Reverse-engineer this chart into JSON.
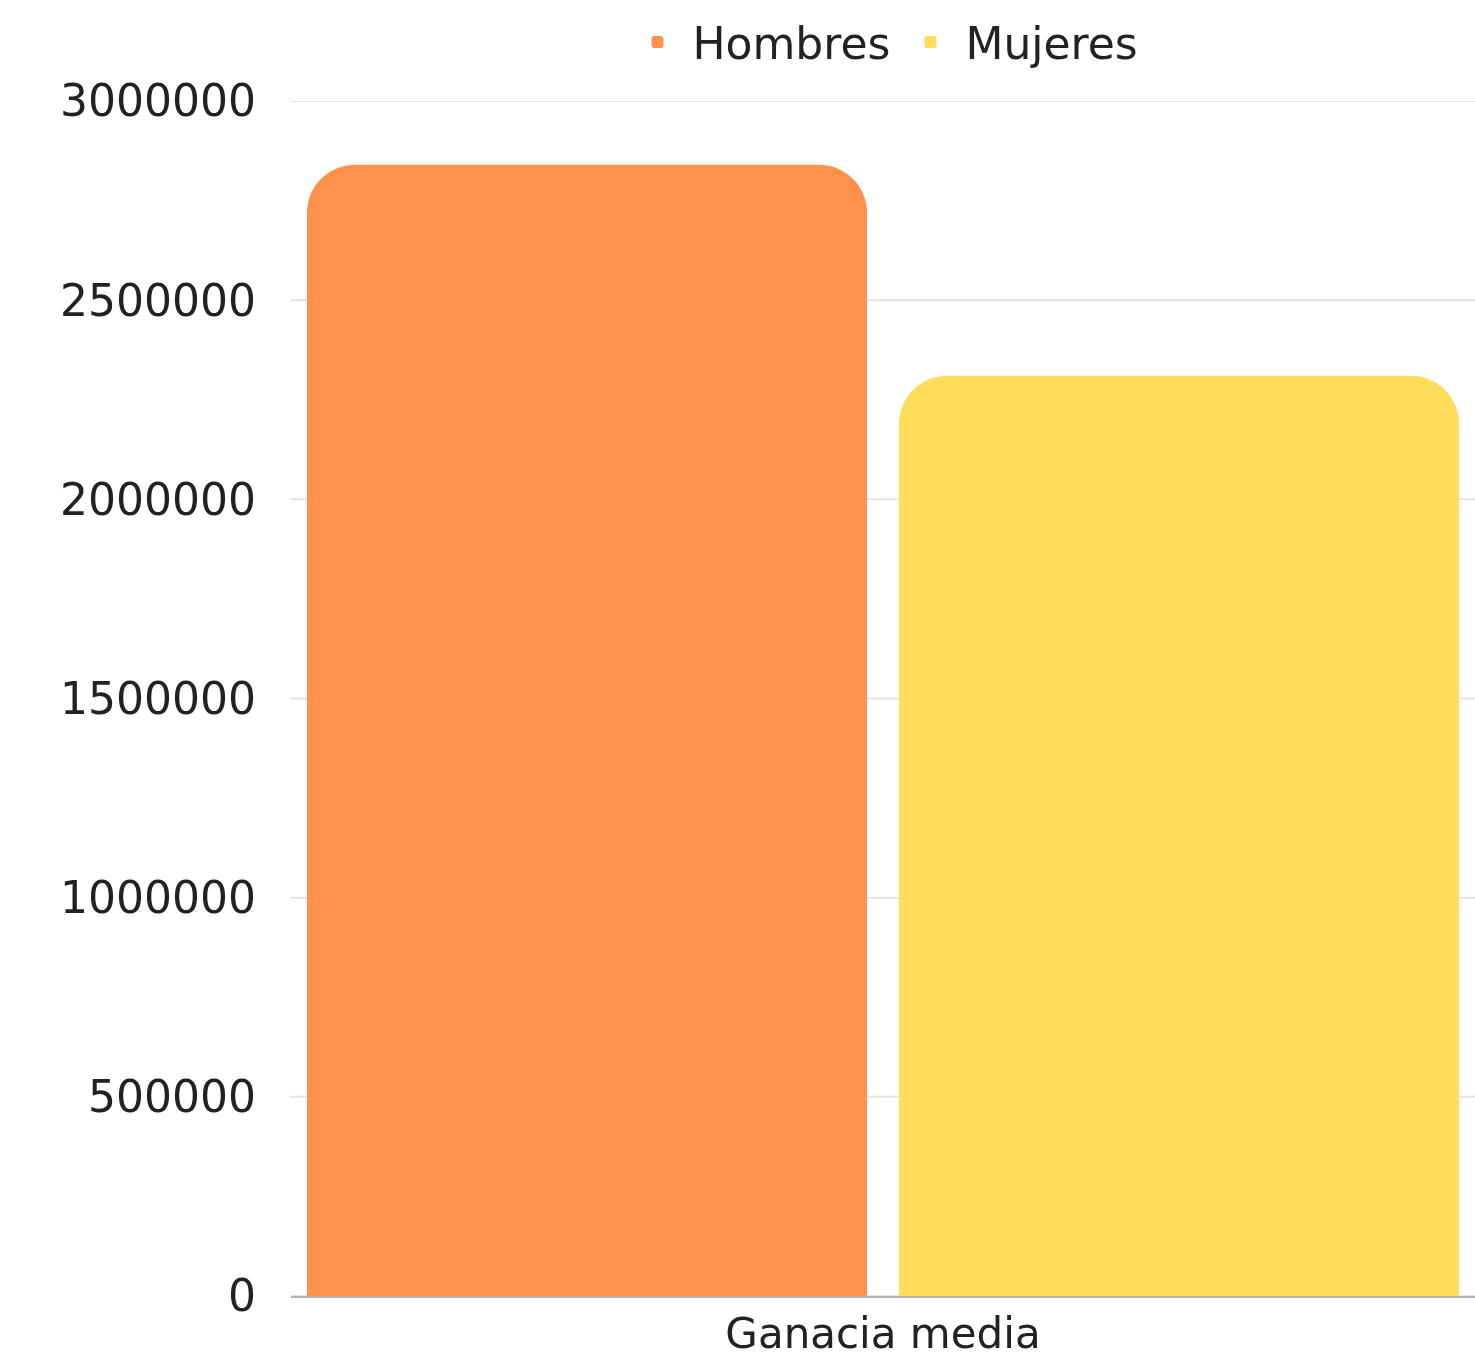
{
  "chart_data": {
    "type": "bar",
    "categories": [
      "Ganacia media"
    ],
    "series": [
      {
        "name": "Hombres",
        "color": "#ff914d",
        "values": [
          2840000
        ]
      },
      {
        "name": "Mujeres",
        "color": "#ffdc5a",
        "values": [
          2310000
        ]
      }
    ],
    "ylim": [
      0,
      3000000
    ],
    "yticks": [
      0,
      500000,
      1000000,
      1500000,
      2000000,
      2500000,
      3000000
    ],
    "grid": "y",
    "legend": "top"
  }
}
